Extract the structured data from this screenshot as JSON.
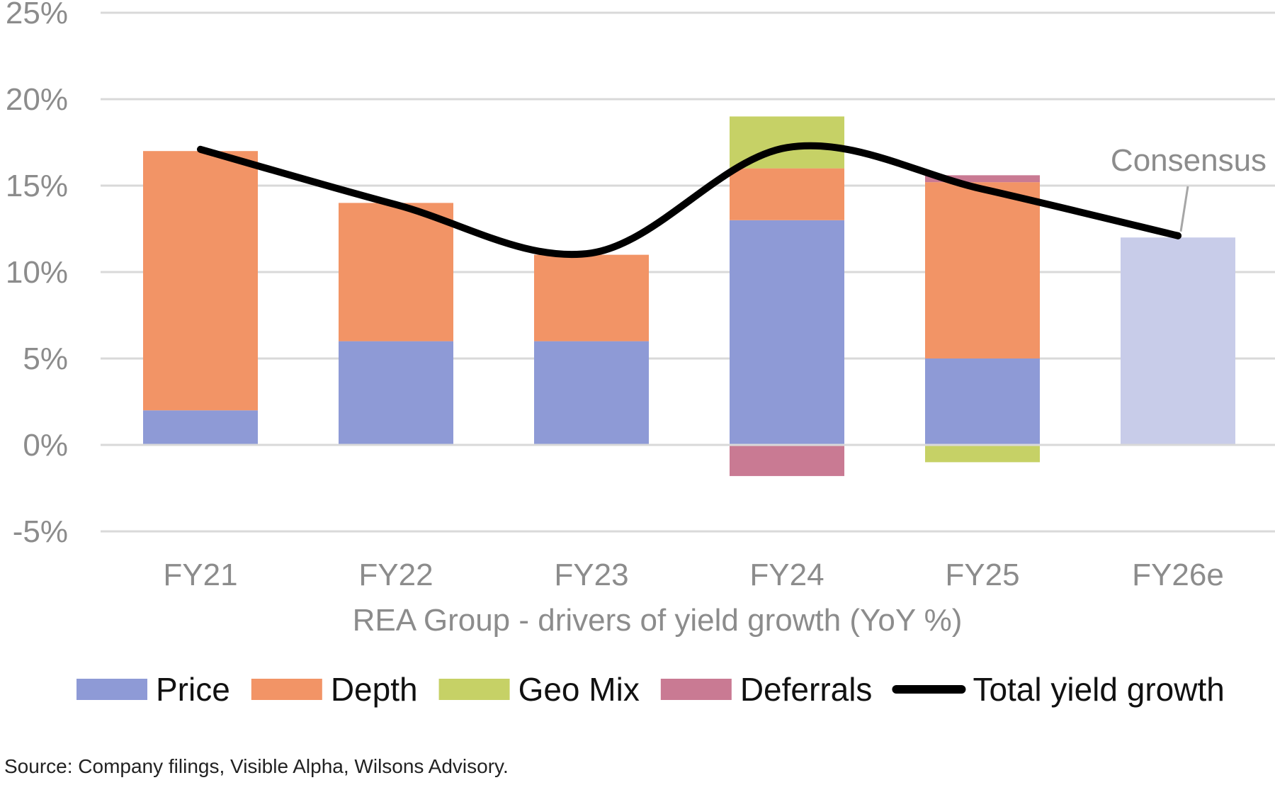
{
  "chart_data": {
    "type": "bar",
    "stacked": true,
    "categories": [
      "FY21",
      "FY22",
      "FY23",
      "FY24",
      "FY25",
      "FY26e"
    ],
    "series": [
      {
        "name": "Price",
        "color": "#8e9ad6",
        "values": [
          2,
          6,
          6,
          13,
          5,
          12
        ]
      },
      {
        "name": "Depth",
        "color": "#f29466",
        "values": [
          15,
          8,
          5,
          3,
          10.2,
          0
        ]
      },
      {
        "name": "Geo Mix",
        "color": "#c6d166",
        "values": [
          0,
          0,
          0,
          3,
          -1,
          0
        ]
      },
      {
        "name": "Deferrals",
        "color": "#c97a93",
        "values": [
          0,
          0,
          0,
          -1.8,
          0.4,
          0
        ]
      }
    ],
    "line_series": {
      "name": "Total yield growth",
      "color": "#000000",
      "values": [
        17.1,
        13.9,
        11.1,
        17.2,
        14.8,
        12.1
      ]
    },
    "fy26e_bar_color": "#c8cce9",
    "ylim": [
      -5,
      25
    ],
    "yticks": [
      -5,
      0,
      5,
      10,
      15,
      20,
      25
    ],
    "ytick_labels": [
      "-5%",
      "0%",
      "5%",
      "10%",
      "15%",
      "20%",
      "25%"
    ],
    "xlabel": "REA Group - drivers of yield growth (YoY %)",
    "ylabel": "",
    "annotation": "Consensus",
    "grid": true,
    "legend_position": "bottom"
  },
  "legend": [
    {
      "label": "Price",
      "color": "#8e9ad6",
      "kind": "bar"
    },
    {
      "label": "Depth",
      "color": "#f29466",
      "kind": "bar"
    },
    {
      "label": "Geo Mix",
      "color": "#c6d166",
      "kind": "bar"
    },
    {
      "label": "Deferrals",
      "color": "#c97a93",
      "kind": "bar"
    },
    {
      "label": "Total yield growth",
      "color": "#000000",
      "kind": "line"
    }
  ],
  "source": "Source: Company filings, Visible Alpha, Wilsons Advisory."
}
